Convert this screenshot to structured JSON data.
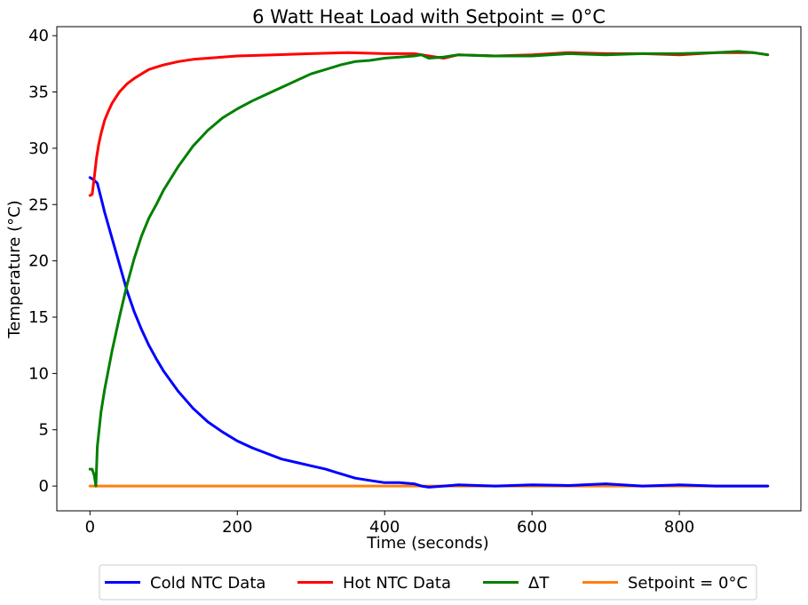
{
  "chart_data": {
    "type": "line",
    "title": "6 Watt Heat Load with Setpoint = 0°C",
    "xlabel": "Time (seconds)",
    "ylabel": "Temperature (°C)",
    "xlim": [
      -45,
      965
    ],
    "ylim": [
      -2.2,
      40.8
    ],
    "xticks": [
      0,
      200,
      400,
      600,
      800
    ],
    "yticks": [
      0,
      5,
      10,
      15,
      20,
      25,
      30,
      35,
      40
    ],
    "grid": false,
    "legend_position": "bottom-center",
    "series": [
      {
        "name": "Cold NTC Data",
        "color": "#0000ff",
        "x": [
          0,
          5,
          10,
          15,
          20,
          30,
          40,
          50,
          60,
          70,
          80,
          90,
          100,
          120,
          140,
          160,
          180,
          200,
          220,
          240,
          260,
          280,
          300,
          320,
          340,
          360,
          380,
          400,
          420,
          440,
          450,
          460,
          480,
          500,
          550,
          600,
          650,
          700,
          750,
          800,
          850,
          900,
          920
        ],
        "y": [
          27.4,
          27.2,
          26.9,
          25.6,
          24.3,
          22.0,
          19.7,
          17.4,
          15.5,
          13.9,
          12.5,
          11.3,
          10.2,
          8.4,
          6.9,
          5.7,
          4.8,
          4.0,
          3.4,
          2.9,
          2.4,
          2.1,
          1.8,
          1.5,
          1.1,
          0.7,
          0.5,
          0.3,
          0.3,
          0.2,
          0.0,
          -0.1,
          0.0,
          0.1,
          0.0,
          0.1,
          0.05,
          0.2,
          0.0,
          0.1,
          0.0,
          0.0,
          0.0
        ]
      },
      {
        "name": "Hot NTC Data",
        "color": "#ff0000",
        "x": [
          0,
          3,
          6,
          9,
          12,
          15,
          20,
          25,
          30,
          40,
          50,
          60,
          70,
          80,
          90,
          100,
          120,
          140,
          160,
          180,
          200,
          250,
          300,
          350,
          400,
          440,
          460,
          480,
          500,
          550,
          600,
          650,
          700,
          750,
          800,
          850,
          900,
          920
        ],
        "y": [
          25.8,
          25.9,
          27.5,
          29.2,
          30.4,
          31.3,
          32.5,
          33.3,
          34.0,
          35.0,
          35.7,
          36.2,
          36.6,
          37.0,
          37.2,
          37.4,
          37.7,
          37.9,
          38.0,
          38.1,
          38.2,
          38.3,
          38.4,
          38.5,
          38.4,
          38.4,
          38.2,
          38.0,
          38.3,
          38.2,
          38.3,
          38.5,
          38.4,
          38.4,
          38.3,
          38.5,
          38.5,
          38.3
        ]
      },
      {
        "name": "ΔT",
        "color": "#008000",
        "x": [
          0,
          3,
          6,
          8,
          10,
          15,
          20,
          30,
          40,
          50,
          60,
          70,
          80,
          90,
          100,
          120,
          140,
          160,
          180,
          200,
          220,
          240,
          260,
          280,
          300,
          320,
          340,
          360,
          380,
          400,
          420,
          440,
          450,
          460,
          480,
          500,
          550,
          600,
          650,
          700,
          750,
          800,
          850,
          880,
          900,
          920
        ],
        "y": [
          1.5,
          1.5,
          0.9,
          0.0,
          3.5,
          6.6,
          8.6,
          12.0,
          15.0,
          17.8,
          20.2,
          22.2,
          23.8,
          25.0,
          26.3,
          28.4,
          30.2,
          31.6,
          32.7,
          33.5,
          34.2,
          34.8,
          35.4,
          36.0,
          36.6,
          37.0,
          37.4,
          37.7,
          37.8,
          38.0,
          38.1,
          38.2,
          38.3,
          38.0,
          38.1,
          38.3,
          38.2,
          38.2,
          38.4,
          38.3,
          38.4,
          38.4,
          38.5,
          38.6,
          38.5,
          38.3
        ]
      },
      {
        "name": "Setpoint = 0°C",
        "color": "#ff7f0e",
        "x": [
          0,
          920
        ],
        "y": [
          0,
          0
        ]
      }
    ]
  }
}
